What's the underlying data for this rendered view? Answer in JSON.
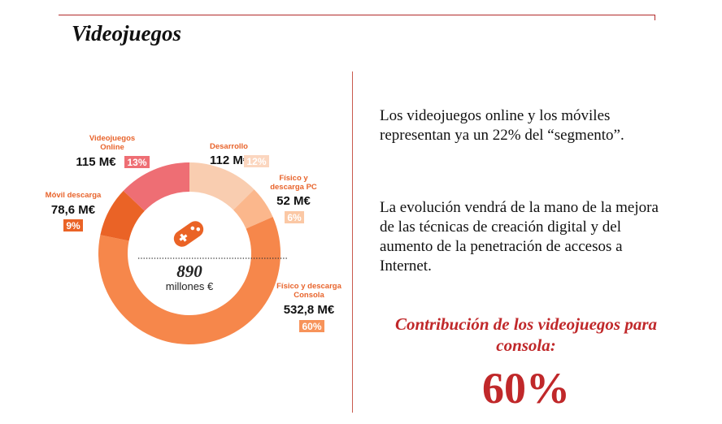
{
  "page": {
    "title": "Videojuegos",
    "paragraph_1": "Los videojuegos online y los móviles representan ya un 22% del “segmento”.",
    "paragraph_2": "La evolución vendrá de la mano de la mejora de las técnicas de creación digital y del aumento de la penetración de accesos a Internet.",
    "highlight_label": "Contribución de los videojuegos para consola:",
    "highlight_value": "60%"
  },
  "icons": {
    "center": "gamepad-icon"
  },
  "chart_data": {
    "type": "donut",
    "total": "890",
    "total_unit": "millones €",
    "slices": [
      {
        "name": "Desarrollo",
        "value": 112,
        "value_label": "112 M€",
        "pct": 12,
        "pct_label": "12%",
        "color": "#f9cdb0",
        "pct_bg": "#fbd6bf",
        "pct_color": "#ffffff"
      },
      {
        "name": "Físico y descarga PC",
        "value": 52,
        "value_label": "52 M€",
        "pct": 6,
        "pct_label": "6%",
        "color": "#fbb78c",
        "pct_bg": "#fbc8a5",
        "pct_color": "#ffffff"
      },
      {
        "name": "Físico y descarga Consola",
        "value": 532.8,
        "value_label": "532,8 M€",
        "pct": 60,
        "pct_label": "60%",
        "color": "#f6874b",
        "pct_bg": "#f7935a",
        "pct_color": "#ffffff"
      },
      {
        "name": "Móvil descarga",
        "value": 78.6,
        "value_label": "78,6 M€",
        "pct": 9,
        "pct_label": "9%",
        "color": "#ea6326",
        "pct_bg": "#ea6326",
        "pct_color": "#ffffff"
      },
      {
        "name": "Videojuegos Online",
        "value": 115,
        "value_label": "115 M€",
        "pct": 13,
        "pct_label": "13%",
        "color": "#ee6e74",
        "pct_bg": "#ee6e74",
        "pct_color": "#ffffff"
      }
    ]
  },
  "colors": {
    "accent": "#c0282a",
    "icon": "#ea6326"
  }
}
